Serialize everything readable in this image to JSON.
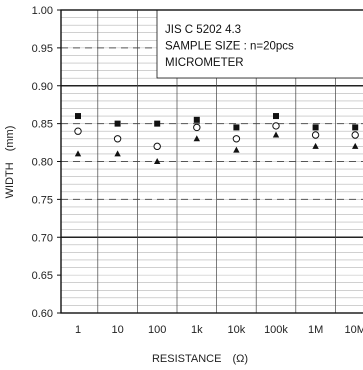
{
  "chart_data": {
    "type": "scatter",
    "title": "",
    "xlabel": "RESISTANCE　(Ω)",
    "ylabel": "WIDTH　(mm)",
    "categories": [
      "1",
      "10",
      "100",
      "1k",
      "10k",
      "100k",
      "1M",
      "10M"
    ],
    "ylim": [
      0.6,
      1.0
    ],
    "yticks": [
      "0.60",
      "0.65",
      "0.70",
      "0.75",
      "0.80",
      "0.85",
      "0.90",
      "0.95",
      "1.00"
    ],
    "grid": true,
    "annotation": [
      "JIS C 5202 4.3",
      "SAMPLE SIZE : n=20pcs",
      "MICROMETER"
    ],
    "limits": [
      {
        "kind": "spec",
        "style": "solid",
        "values": [
          0.7,
          0.9
        ]
      },
      {
        "kind": "control",
        "style": "dashed",
        "values": [
          0.75,
          0.8,
          0.85,
          0.95
        ]
      }
    ],
    "series": [
      {
        "marker": "filled-square",
        "values": [
          0.86,
          0.85,
          0.85,
          0.855,
          0.845,
          0.86,
          0.845,
          0.845
        ]
      },
      {
        "marker": "open-circle",
        "values": [
          0.84,
          0.83,
          0.82,
          0.845,
          0.83,
          0.847,
          0.835,
          0.835
        ]
      },
      {
        "marker": "filled-triangle",
        "values": [
          0.81,
          0.81,
          0.8,
          0.83,
          0.815,
          0.835,
          0.82,
          0.82
        ]
      }
    ]
  }
}
